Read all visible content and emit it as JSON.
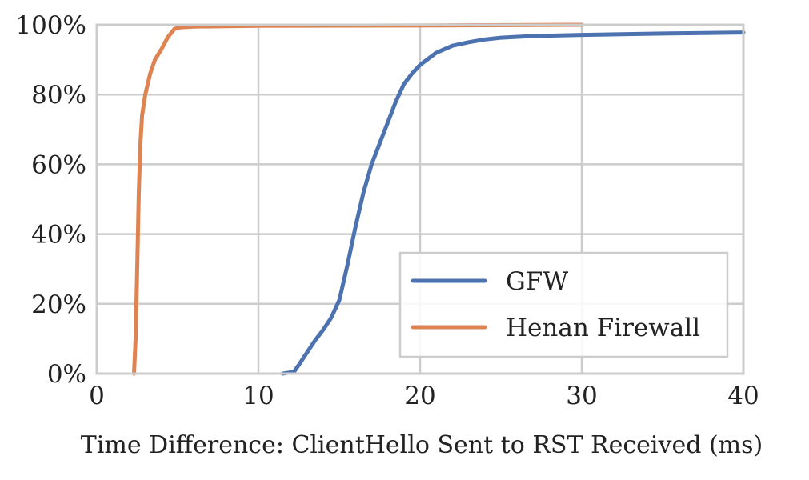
{
  "chart_data": {
    "type": "line",
    "title": "",
    "xlabel": "Time Difference: ClientHello Sent to RST Received (ms)",
    "ylabel": "",
    "xlim": [
      0,
      40
    ],
    "ylim": [
      0,
      100
    ],
    "x_ticks": [
      0,
      10,
      20,
      30,
      40
    ],
    "x_tick_labels": [
      "0",
      "10",
      "20",
      "30",
      "40"
    ],
    "y_ticks": [
      0,
      20,
      40,
      60,
      80,
      100
    ],
    "y_tick_labels": [
      "0%",
      "20%",
      "40%",
      "60%",
      "80%",
      "100%"
    ],
    "grid": true,
    "legend_position": "bottom-right",
    "series": [
      {
        "name": "GFW",
        "color": "#4c72b0",
        "points": [
          [
            11.5,
            0
          ],
          [
            12.2,
            0.5
          ],
          [
            12.5,
            2.5
          ],
          [
            13.0,
            6
          ],
          [
            13.5,
            9.5
          ],
          [
            14.0,
            12.5
          ],
          [
            14.5,
            16
          ],
          [
            15.0,
            21
          ],
          [
            15.5,
            31
          ],
          [
            16.0,
            42
          ],
          [
            16.5,
            52
          ],
          [
            17.0,
            60
          ],
          [
            17.5,
            66
          ],
          [
            18.0,
            72
          ],
          [
            18.5,
            78
          ],
          [
            19.0,
            83
          ],
          [
            19.5,
            86
          ],
          [
            20.0,
            88.5
          ],
          [
            21.0,
            92
          ],
          [
            22.0,
            94
          ],
          [
            23.0,
            95
          ],
          [
            24.0,
            95.8
          ],
          [
            25.0,
            96.3
          ],
          [
            27.0,
            96.8
          ],
          [
            30.0,
            97.1
          ],
          [
            35.0,
            97.5
          ],
          [
            40.0,
            97.8
          ]
        ]
      },
      {
        "name": "Henan Firewall",
        "color": "#dd8452",
        "points": [
          [
            2.3,
            0
          ],
          [
            2.4,
            10
          ],
          [
            2.5,
            30
          ],
          [
            2.6,
            52
          ],
          [
            2.7,
            66
          ],
          [
            2.8,
            74
          ],
          [
            3.0,
            80
          ],
          [
            3.3,
            86
          ],
          [
            3.6,
            90
          ],
          [
            4.0,
            93
          ],
          [
            4.4,
            96.5
          ],
          [
            4.8,
            98.8
          ],
          [
            5.2,
            99.3
          ],
          [
            6.0,
            99.5
          ],
          [
            10.0,
            99.7
          ],
          [
            20.0,
            99.8
          ],
          [
            30.0,
            100
          ]
        ]
      }
    ]
  }
}
